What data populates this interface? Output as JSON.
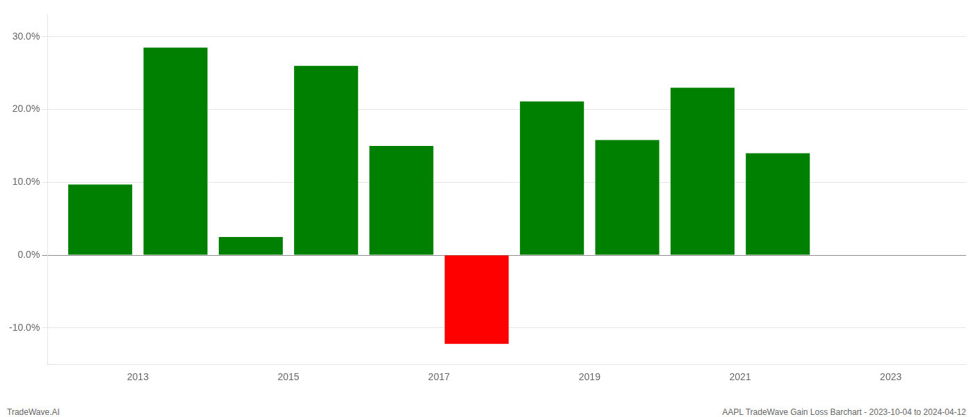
{
  "chart_data": {
    "type": "bar",
    "x": [
      2012.5,
      2013.5,
      2014.5,
      2015.5,
      2016.5,
      2017.5,
      2018.5,
      2019.5,
      2020.5,
      2021.5
    ],
    "values": [
      9.7,
      28.5,
      2.5,
      26.0,
      15.0,
      -12.2,
      21.1,
      15.8,
      23.0,
      14.0
    ],
    "colors": [
      "#008000",
      "#008000",
      "#008000",
      "#008000",
      "#008000",
      "#ff0000",
      "#008000",
      "#008000",
      "#008000",
      "#008000"
    ],
    "xlim": [
      2011.8,
      2024.0
    ],
    "xticks": [
      2013,
      2015,
      2017,
      2019,
      2021,
      2023
    ],
    "ylim": [
      -15,
      33
    ],
    "yticks": [
      {
        "value": -10.0,
        "label": "-10.0%"
      },
      {
        "value": 0.0,
        "label": "0.0%"
      },
      {
        "value": 10.0,
        "label": "10.0%"
      },
      {
        "value": 20.0,
        "label": "20.0%"
      },
      {
        "value": 30.0,
        "label": "30.0%"
      }
    ],
    "grid": true,
    "annotations": [
      "TradeWave.AI",
      "AAPL TradeWave Gain Loss Barchart - 2023-10-04 to 2024-04-12"
    ]
  }
}
